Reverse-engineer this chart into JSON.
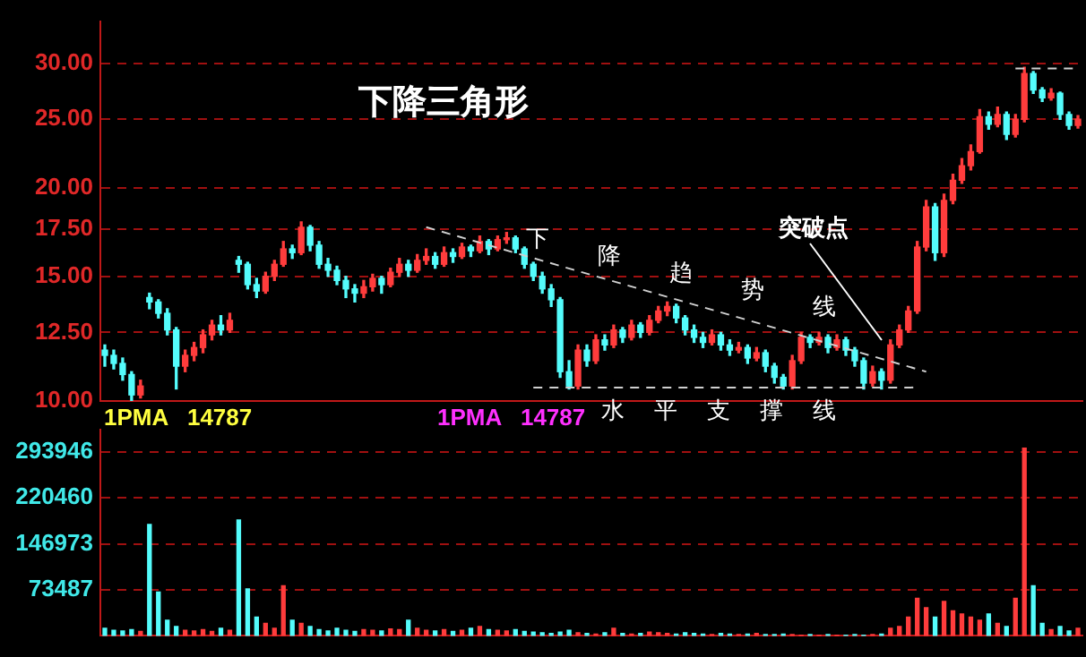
{
  "chart_data": [
    {
      "type": "candlestick",
      "title": "下降三角形",
      "categories": [
        null,
        null,
        null,
        null,
        null,
        null,
        null,
        null,
        null,
        null,
        null,
        null,
        null,
        null,
        null,
        null,
        null,
        null,
        null,
        null,
        null,
        null,
        null,
        null,
        null,
        null,
        null,
        null,
        null,
        null,
        null,
        null,
        null,
        null,
        null,
        null,
        null,
        null,
        null,
        null,
        null,
        null,
        null,
        null,
        null,
        null,
        null,
        null,
        null,
        null,
        null,
        null,
        null,
        null,
        null,
        null,
        null,
        null,
        null,
        null,
        null,
        null,
        null,
        null,
        null,
        null,
        null,
        null,
        null,
        null,
        null,
        null,
        null,
        null,
        null,
        null,
        null,
        null,
        null,
        null,
        null,
        null,
        null,
        null,
        null,
        null,
        null,
        null,
        null,
        null,
        null,
        null,
        null,
        null,
        null,
        null,
        null,
        null,
        null,
        null,
        null,
        null,
        null,
        null,
        null,
        null,
        null,
        null,
        null,
        null
      ],
      "ohlc": [
        [
          11.8,
          12.0,
          11.2,
          11.6
        ],
        [
          11.6,
          11.8,
          11.1,
          11.3
        ],
        [
          11.3,
          11.5,
          10.7,
          10.9
        ],
        [
          10.9,
          11.0,
          10.0,
          10.2
        ],
        [
          10.2,
          10.7,
          10.1,
          10.5
        ],
        [
          14.0,
          14.2,
          13.5,
          13.8
        ],
        [
          13.8,
          13.9,
          13.1,
          13.3
        ],
        [
          13.3,
          13.5,
          12.4,
          12.6
        ],
        [
          12.6,
          12.7,
          10.4,
          11.2
        ],
        [
          11.2,
          11.8,
          11.0,
          11.6
        ],
        [
          11.6,
          12.1,
          11.4,
          11.9
        ],
        [
          11.9,
          12.6,
          11.7,
          12.4
        ],
        [
          12.4,
          13.0,
          12.2,
          12.8
        ],
        [
          12.8,
          13.2,
          12.4,
          12.6
        ],
        [
          12.6,
          13.3,
          12.5,
          13.0
        ],
        [
          15.8,
          16.0,
          15.2,
          15.6
        ],
        [
          15.6,
          15.7,
          14.4,
          14.6
        ],
        [
          14.6,
          14.9,
          14.0,
          14.3
        ],
        [
          14.3,
          15.2,
          14.2,
          15.0
        ],
        [
          15.0,
          15.8,
          14.8,
          15.6
        ],
        [
          15.6,
          16.8,
          15.5,
          16.4
        ],
        [
          16.4,
          16.6,
          15.9,
          16.2
        ],
        [
          16.2,
          17.9,
          16.1,
          17.6
        ],
        [
          17.6,
          17.7,
          16.3,
          16.6
        ],
        [
          16.6,
          16.8,
          15.4,
          15.6
        ],
        [
          15.6,
          15.9,
          15.0,
          15.3
        ],
        [
          15.3,
          15.5,
          14.6,
          14.8
        ],
        [
          14.8,
          15.0,
          14.0,
          14.4
        ],
        [
          14.4,
          14.6,
          13.8,
          14.2
        ],
        [
          14.2,
          14.8,
          14.0,
          14.5
        ],
        [
          14.5,
          15.1,
          14.3,
          14.9
        ],
        [
          14.9,
          15.0,
          14.2,
          14.6
        ],
        [
          14.6,
          15.4,
          14.5,
          15.2
        ],
        [
          15.2,
          15.9,
          15.0,
          15.6
        ],
        [
          15.6,
          15.8,
          15.0,
          15.3
        ],
        [
          15.3,
          16.1,
          15.2,
          15.8
        ],
        [
          15.8,
          16.4,
          15.6,
          16.0
        ],
        [
          16.0,
          16.2,
          15.4,
          15.6
        ],
        [
          15.6,
          16.5,
          15.5,
          16.2
        ],
        [
          16.2,
          16.4,
          15.7,
          16.0
        ],
        [
          16.0,
          16.7,
          15.9,
          16.5
        ],
        [
          16.5,
          16.6,
          16.0,
          16.3
        ],
        [
          16.3,
          17.1,
          16.2,
          16.8
        ],
        [
          16.8,
          16.9,
          16.1,
          16.4
        ],
        [
          16.4,
          17.1,
          16.3,
          16.9
        ],
        [
          16.9,
          17.3,
          16.7,
          17.0
        ],
        [
          17.0,
          17.1,
          16.2,
          16.4
        ],
        [
          16.4,
          16.5,
          15.4,
          15.6
        ],
        [
          15.6,
          15.7,
          14.8,
          15.0
        ],
        [
          15.0,
          15.2,
          14.2,
          14.4
        ],
        [
          14.4,
          14.6,
          13.6,
          13.9
        ],
        [
          13.9,
          14.0,
          10.8,
          11.0
        ],
        [
          11.0,
          11.4,
          10.4,
          10.5
        ],
        [
          10.5,
          12.0,
          10.4,
          11.8
        ],
        [
          11.8,
          12.0,
          11.2,
          11.4
        ],
        [
          11.4,
          12.4,
          11.3,
          12.2
        ],
        [
          12.2,
          12.4,
          11.8,
          12.0
        ],
        [
          12.0,
          12.8,
          11.9,
          12.6
        ],
        [
          12.6,
          12.7,
          12.1,
          12.3
        ],
        [
          12.3,
          13.0,
          12.2,
          12.8
        ],
        [
          12.8,
          12.9,
          12.3,
          12.5
        ],
        [
          12.5,
          13.2,
          12.4,
          13.0
        ],
        [
          13.0,
          13.6,
          12.9,
          13.4
        ],
        [
          13.4,
          13.8,
          13.2,
          13.6
        ],
        [
          13.6,
          13.7,
          12.9,
          13.1
        ],
        [
          13.1,
          13.2,
          12.4,
          12.6
        ],
        [
          12.6,
          12.8,
          12.1,
          12.3
        ],
        [
          12.3,
          12.5,
          11.9,
          12.1
        ],
        [
          12.1,
          12.6,
          12.0,
          12.4
        ],
        [
          12.4,
          12.5,
          11.8,
          12.0
        ],
        [
          12.0,
          12.2,
          11.6,
          11.8
        ],
        [
          11.8,
          12.1,
          11.7,
          11.9
        ],
        [
          11.9,
          12.0,
          11.3,
          11.5
        ],
        [
          11.5,
          11.9,
          11.4,
          11.7
        ],
        [
          11.7,
          11.8,
          11.0,
          11.2
        ],
        [
          11.2,
          11.3,
          10.6,
          10.8
        ],
        [
          10.8,
          10.9,
          10.4,
          10.5
        ],
        [
          10.5,
          11.6,
          10.4,
          11.4
        ],
        [
          11.4,
          12.5,
          11.3,
          12.3
        ],
        [
          12.3,
          12.4,
          11.9,
          12.1
        ],
        [
          12.1,
          12.5,
          12.0,
          12.3
        ],
        [
          12.3,
          12.4,
          11.7,
          11.9
        ],
        [
          11.9,
          12.4,
          11.8,
          12.2
        ],
        [
          12.2,
          12.3,
          11.6,
          11.8
        ],
        [
          11.8,
          11.9,
          11.2,
          11.4
        ],
        [
          11.4,
          11.5,
          10.4,
          10.6
        ],
        [
          10.6,
          11.2,
          10.5,
          11.0
        ],
        [
          11.0,
          11.1,
          10.4,
          10.7
        ],
        [
          10.7,
          12.2,
          10.6,
          12.0
        ],
        [
          12.0,
          12.8,
          11.9,
          12.6
        ],
        [
          12.6,
          13.6,
          12.5,
          13.4
        ],
        [
          13.4,
          16.8,
          13.3,
          16.5
        ],
        [
          16.5,
          19.2,
          16.3,
          18.8
        ],
        [
          18.8,
          19.0,
          15.8,
          16.2
        ],
        [
          16.2,
          19.6,
          16.0,
          19.2
        ],
        [
          19.2,
          20.9,
          19.0,
          20.5
        ],
        [
          20.5,
          22.0,
          20.3,
          21.5
        ],
        [
          21.5,
          23.0,
          21.2,
          22.5
        ],
        [
          22.5,
          25.8,
          22.4,
          25.2
        ],
        [
          25.2,
          25.6,
          24.2,
          24.6
        ],
        [
          24.6,
          26.0,
          24.4,
          25.4
        ],
        [
          25.4,
          25.6,
          23.4,
          23.8
        ],
        [
          23.8,
          25.4,
          23.6,
          25.0
        ],
        [
          25.0,
          29.6,
          24.8,
          29.0
        ],
        [
          29.0,
          29.2,
          27.2,
          27.5
        ],
        [
          27.5,
          27.7,
          26.5,
          26.8
        ],
        [
          26.8,
          27.6,
          26.6,
          27.2
        ],
        [
          27.2,
          27.3,
          25.0,
          25.4
        ],
        [
          25.4,
          25.6,
          24.2,
          24.5
        ],
        [
          24.5,
          25.3,
          24.3,
          25.0
        ]
      ],
      "colors": [
        "#54fcfc",
        "#54fcfc",
        "#54fcfc",
        "#54fcfc",
        "#ff3c3c",
        "#54fcfc",
        "#54fcfc",
        "#54fcfc",
        "#54fcfc",
        "#ff3c3c",
        "#ff3c3c",
        "#ff3c3c",
        "#ff3c3c",
        "#54fcfc",
        "#ff3c3c",
        "#54fcfc",
        "#54fcfc",
        "#54fcfc",
        "#ff3c3c",
        "#ff3c3c",
        "#ff3c3c",
        "#54fcfc",
        "#ff3c3c",
        "#54fcfc",
        "#54fcfc",
        "#54fcfc",
        "#54fcfc",
        "#54fcfc",
        "#54fcfc",
        "#ff3c3c",
        "#ff3c3c",
        "#54fcfc",
        "#ff3c3c",
        "#ff3c3c",
        "#54fcfc",
        "#ff3c3c",
        "#ff3c3c",
        "#54fcfc",
        "#ff3c3c",
        "#54fcfc",
        "#ff3c3c",
        "#54fcfc",
        "#ff3c3c",
        "#54fcfc",
        "#ff3c3c",
        "#ff3c3c",
        "#54fcfc",
        "#54fcfc",
        "#54fcfc",
        "#54fcfc",
        "#54fcfc",
        "#54fcfc",
        "#54fcfc",
        "#ff3c3c",
        "#54fcfc",
        "#ff3c3c",
        "#54fcfc",
        "#ff3c3c",
        "#54fcfc",
        "#ff3c3c",
        "#54fcfc",
        "#ff3c3c",
        "#ff3c3c",
        "#ff3c3c",
        "#54fcfc",
        "#54fcfc",
        "#54fcfc",
        "#54fcfc",
        "#ff3c3c",
        "#54fcfc",
        "#54fcfc",
        "#ff3c3c",
        "#54fcfc",
        "#ff3c3c",
        "#54fcfc",
        "#54fcfc",
        "#54fcfc",
        "#ff3c3c",
        "#ff3c3c",
        "#54fcfc",
        "#ff3c3c",
        "#54fcfc",
        "#ff3c3c",
        "#54fcfc",
        "#54fcfc",
        "#54fcfc",
        "#ff3c3c",
        "#54fcfc",
        "#ff3c3c",
        "#ff3c3c",
        "#ff3c3c",
        "#ff3c3c",
        "#ff3c3c",
        "#54fcfc",
        "#ff3c3c",
        "#ff3c3c",
        "#ff3c3c",
        "#ff3c3c",
        "#ff3c3c",
        "#54fcfc",
        "#ff3c3c",
        "#54fcfc",
        "#ff3c3c",
        "#ff3c3c",
        "#54fcfc",
        "#54fcfc",
        "#ff3c3c",
        "#54fcfc",
        "#54fcfc",
        "#ff3c3c"
      ],
      "series": [
        {
          "type": "line",
          "color": "#d0d0d0",
          "line_style": "dashed",
          "values": [
            null,
            null,
            null,
            null,
            null,
            null,
            null,
            null,
            null,
            null,
            null,
            null,
            null,
            null,
            null,
            null,
            null,
            null,
            null,
            null,
            null,
            null,
            null,
            null,
            null,
            null,
            null,
            null,
            null,
            null,
            null,
            null,
            null,
            null,
            null,
            null,
            17.6,
            null,
            null,
            null,
            null,
            null,
            null,
            null,
            null,
            null,
            null,
            null,
            null,
            null,
            null,
            null,
            null,
            null,
            null,
            null,
            null,
            null,
            null,
            null,
            null,
            null,
            null,
            null,
            null,
            null,
            null,
            null,
            null,
            null,
            null,
            null,
            null,
            null,
            null,
            null,
            null,
            null,
            null,
            null,
            null,
            null,
            null,
            null,
            null,
            null,
            null,
            null,
            null,
            null,
            null,
            null,
            11.0,
            null,
            null,
            null,
            null,
            null,
            null,
            null,
            null,
            null,
            null,
            null,
            null,
            null,
            null,
            null,
            null,
            null
          ]
        },
        {
          "type": "line",
          "color": "#d0d0d0",
          "line_style": "dashed",
          "values": [
            null,
            null,
            null,
            null,
            null,
            null,
            null,
            null,
            null,
            null,
            null,
            null,
            null,
            null,
            null,
            null,
            null,
            null,
            null,
            null,
            null,
            null,
            null,
            null,
            null,
            null,
            null,
            null,
            null,
            null,
            null,
            null,
            null,
            null,
            null,
            null,
            null,
            null,
            null,
            null,
            null,
            null,
            null,
            null,
            null,
            null,
            null,
            null,
            10.45,
            null,
            null,
            null,
            null,
            null,
            null,
            null,
            null,
            null,
            null,
            null,
            null,
            null,
            null,
            null,
            null,
            null,
            null,
            null,
            null,
            null,
            null,
            null,
            null,
            null,
            null,
            null,
            null,
            null,
            null,
            null,
            null,
            null,
            null,
            null,
            null,
            null,
            null,
            null,
            null,
            null,
            null,
            10.45,
            null,
            null,
            null,
            null,
            null,
            null,
            null,
            null,
            null,
            null,
            null,
            null,
            null,
            null,
            null,
            null,
            null,
            null
          ]
        },
        {
          "type": "line",
          "color": "#d0d0d0",
          "line_style": "dashed",
          "values": [
            null,
            null,
            null,
            null,
            null,
            null,
            null,
            null,
            null,
            null,
            null,
            null,
            null,
            null,
            null,
            null,
            null,
            null,
            null,
            null,
            null,
            null,
            null,
            null,
            null,
            null,
            null,
            null,
            null,
            null,
            null,
            null,
            null,
            null,
            null,
            null,
            null,
            null,
            null,
            null,
            null,
            null,
            null,
            null,
            null,
            null,
            null,
            null,
            null,
            null,
            null,
            null,
            null,
            null,
            null,
            null,
            null,
            null,
            null,
            null,
            null,
            null,
            null,
            null,
            null,
            null,
            null,
            null,
            null,
            null,
            null,
            null,
            null,
            null,
            null,
            null,
            null,
            null,
            null,
            null,
            null,
            null,
            null,
            null,
            null,
            null,
            null,
            null,
            null,
            null,
            null,
            null,
            null,
            null,
            null,
            null,
            null,
            null,
            null,
            null,
            null,
            null,
            29.5,
            null,
            null,
            null,
            null,
            null,
            null,
            29.5
          ]
        }
      ],
      "annotations": [
        "下降趋势线",
        "水平支撑线",
        "突破点"
      ],
      "ylim": [
        10,
        34.4
      ],
      "yticks": [
        {
          "value": 10,
          "label": "10.00"
        },
        {
          "value": 12.5,
          "label": "12.50"
        },
        {
          "value": 15,
          "label": "15.00"
        },
        {
          "value": 17.5,
          "label": "17.50"
        },
        {
          "value": 20,
          "label": "20.00"
        },
        {
          "value": 25,
          "label": "25.00"
        },
        {
          "value": 30,
          "label": "30.00"
        }
      ],
      "log": "y",
      "grid": "y",
      "tick_labels": "y"
    },
    {
      "type": "bar",
      "categories": [
        null,
        null,
        null,
        null,
        null,
        null,
        null,
        null,
        null,
        null,
        null,
        null,
        null,
        null,
        null,
        null,
        null,
        null,
        null,
        null,
        null,
        null,
        null,
        null,
        null,
        null,
        null,
        null,
        null,
        null,
        null,
        null,
        null,
        null,
        null,
        null,
        null,
        null,
        null,
        null,
        null,
        null,
        null,
        null,
        null,
        null,
        null,
        null,
        null,
        null,
        null,
        null,
        null,
        null,
        null,
        null,
        null,
        null,
        null,
        null,
        null,
        null,
        null,
        null,
        null,
        null,
        null,
        null,
        null,
        null,
        null,
        null,
        null,
        null,
        null,
        null,
        null,
        null,
        null,
        null,
        null,
        null,
        null,
        null,
        null,
        null,
        null,
        null,
        null,
        null,
        null,
        null,
        null,
        null,
        null,
        null,
        null,
        null,
        null,
        null,
        null,
        null,
        null,
        null,
        null,
        null,
        null,
        null,
        null,
        null
      ],
      "values": [
        12000,
        9000,
        8000,
        10000,
        7000,
        178000,
        70000,
        25000,
        15000,
        9000,
        8000,
        10000,
        7000,
        12000,
        9000,
        185000,
        75000,
        30000,
        20000,
        12000,
        80000,
        25000,
        20000,
        15000,
        10000,
        8000,
        12000,
        9000,
        7000,
        10000,
        9000,
        8000,
        11000,
        10000,
        25000,
        12000,
        9000,
        8000,
        10000,
        7000,
        9000,
        12000,
        15000,
        10000,
        9000,
        8000,
        10000,
        7000,
        6000,
        5000,
        4000,
        6000,
        9000,
        5000,
        4000,
        3000,
        5000,
        12000,
        4000,
        3000,
        4000,
        6000,
        5000,
        4000,
        3000,
        5000,
        4000,
        3000,
        2000,
        4000,
        3000,
        2000,
        3000,
        4000,
        2000,
        2000,
        3000,
        2000,
        1000,
        2000,
        1000,
        2000,
        1000,
        1000,
        2000,
        1000,
        2000,
        3000,
        12000,
        15000,
        30000,
        60000,
        45000,
        30000,
        55000,
        40000,
        35000,
        30000,
        25000,
        35000,
        20000,
        15000,
        60000,
        300000,
        80000,
        20000,
        10000,
        15000,
        8000,
        12000
      ],
      "colors": [
        "#54fcfc",
        "#54fcfc",
        "#54fcfc",
        "#54fcfc",
        "#ff3c3c",
        "#54fcfc",
        "#54fcfc",
        "#54fcfc",
        "#54fcfc",
        "#ff3c3c",
        "#ff3c3c",
        "#ff3c3c",
        "#ff3c3c",
        "#54fcfc",
        "#ff3c3c",
        "#54fcfc",
        "#54fcfc",
        "#54fcfc",
        "#ff3c3c",
        "#ff3c3c",
        "#ff3c3c",
        "#54fcfc",
        "#ff3c3c",
        "#54fcfc",
        "#54fcfc",
        "#54fcfc",
        "#54fcfc",
        "#54fcfc",
        "#54fcfc",
        "#ff3c3c",
        "#ff3c3c",
        "#54fcfc",
        "#ff3c3c",
        "#ff3c3c",
        "#54fcfc",
        "#ff3c3c",
        "#ff3c3c",
        "#54fcfc",
        "#ff3c3c",
        "#54fcfc",
        "#ff3c3c",
        "#54fcfc",
        "#ff3c3c",
        "#54fcfc",
        "#ff3c3c",
        "#ff3c3c",
        "#54fcfc",
        "#54fcfc",
        "#54fcfc",
        "#54fcfc",
        "#54fcfc",
        "#54fcfc",
        "#54fcfc",
        "#ff3c3c",
        "#54fcfc",
        "#ff3c3c",
        "#54fcfc",
        "#ff3c3c",
        "#54fcfc",
        "#ff3c3c",
        "#54fcfc",
        "#ff3c3c",
        "#ff3c3c",
        "#ff3c3c",
        "#54fcfc",
        "#54fcfc",
        "#54fcfc",
        "#54fcfc",
        "#ff3c3c",
        "#54fcfc",
        "#54fcfc",
        "#ff3c3c",
        "#54fcfc",
        "#ff3c3c",
        "#54fcfc",
        "#54fcfc",
        "#54fcfc",
        "#ff3c3c",
        "#ff3c3c",
        "#54fcfc",
        "#ff3c3c",
        "#54fcfc",
        "#ff3c3c",
        "#54fcfc",
        "#54fcfc",
        "#54fcfc",
        "#ff3c3c",
        "#54fcfc",
        "#ff3c3c",
        "#ff3c3c",
        "#ff3c3c",
        "#ff3c3c",
        "#ff3c3c",
        "#54fcfc",
        "#ff3c3c",
        "#ff3c3c",
        "#ff3c3c",
        "#ff3c3c",
        "#ff3c3c",
        "#54fcfc",
        "#ff3c3c",
        "#54fcfc",
        "#ff3c3c",
        "#ff3c3c",
        "#54fcfc",
        "#54fcfc",
        "#ff3c3c",
        "#54fcfc",
        "#54fcfc",
        "#ff3c3c"
      ],
      "annotations": [
        "1PMA   14787",
        "1PMA   14787"
      ],
      "ylim": [
        0,
        330000
      ],
      "yticks": [
        73487,
        146973,
        220460,
        293946
      ],
      "grid": "y",
      "tick_labels": "y"
    }
  ]
}
